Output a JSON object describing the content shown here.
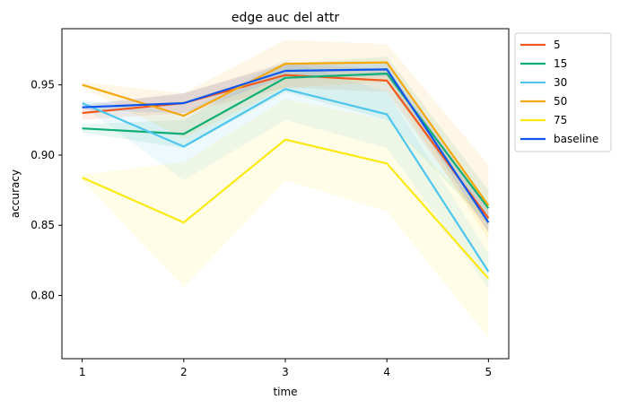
{
  "chart_data": {
    "type": "line",
    "title": "edge auc del attr",
    "xlabel": "time",
    "ylabel": "accuracy",
    "x": [
      1,
      2,
      3,
      4,
      5
    ],
    "xticks": [
      "1",
      "2",
      "3",
      "4",
      "5"
    ],
    "xlim": [
      0.8,
      5.2
    ],
    "ylim": [
      0.755,
      0.99
    ],
    "yticks": [
      0.8,
      0.85,
      0.9,
      0.95
    ],
    "ytick_labels": [
      "0.80",
      "0.85",
      "0.90",
      "0.95"
    ],
    "legend_position": "outside-upper-right",
    "grid": false,
    "series": [
      {
        "name": "5",
        "color": "#f05a1e",
        "values": [
          0.93,
          0.937,
          0.957,
          0.953,
          0.855
        ],
        "lower": [
          0.925,
          0.93,
          0.948,
          0.945,
          0.845
        ],
        "upper": [
          0.935,
          0.944,
          0.966,
          0.961,
          0.865
        ]
      },
      {
        "name": "15",
        "color": "#0fae76",
        "values": [
          0.919,
          0.915,
          0.955,
          0.958,
          0.862
        ],
        "lower": [
          0.916,
          0.905,
          0.945,
          0.925,
          0.85
        ],
        "upper": [
          0.922,
          0.925,
          0.965,
          0.97,
          0.875
        ]
      },
      {
        "name": "30",
        "color": "#4fc6ee",
        "values": [
          0.937,
          0.906,
          0.947,
          0.929,
          0.817
        ],
        "lower": [
          0.935,
          0.882,
          0.925,
          0.905,
          0.805
        ],
        "upper": [
          0.939,
          0.93,
          0.968,
          0.945,
          0.83
        ]
      },
      {
        "name": "50",
        "color": "#f5a80b",
        "values": [
          0.95,
          0.928,
          0.965,
          0.966,
          0.864
        ],
        "lower": [
          0.948,
          0.912,
          0.948,
          0.952,
          0.84
        ],
        "upper": [
          0.952,
          0.944,
          0.982,
          0.979,
          0.893
        ]
      },
      {
        "name": "75",
        "color": "#fce90f",
        "values": [
          0.884,
          0.852,
          0.911,
          0.894,
          0.812
        ],
        "lower": [
          0.882,
          0.806,
          0.882,
          0.86,
          0.77
        ],
        "upper": [
          0.886,
          0.895,
          0.94,
          0.925,
          0.855
        ]
      },
      {
        "name": "baseline",
        "color": "#0e55ed",
        "values": [
          0.934,
          0.937,
          0.96,
          0.961,
          0.852
        ],
        "lower": [
          0.932,
          0.93,
          0.955,
          0.956,
          0.845
        ],
        "upper": [
          0.936,
          0.944,
          0.965,
          0.966,
          0.86
        ]
      }
    ]
  }
}
